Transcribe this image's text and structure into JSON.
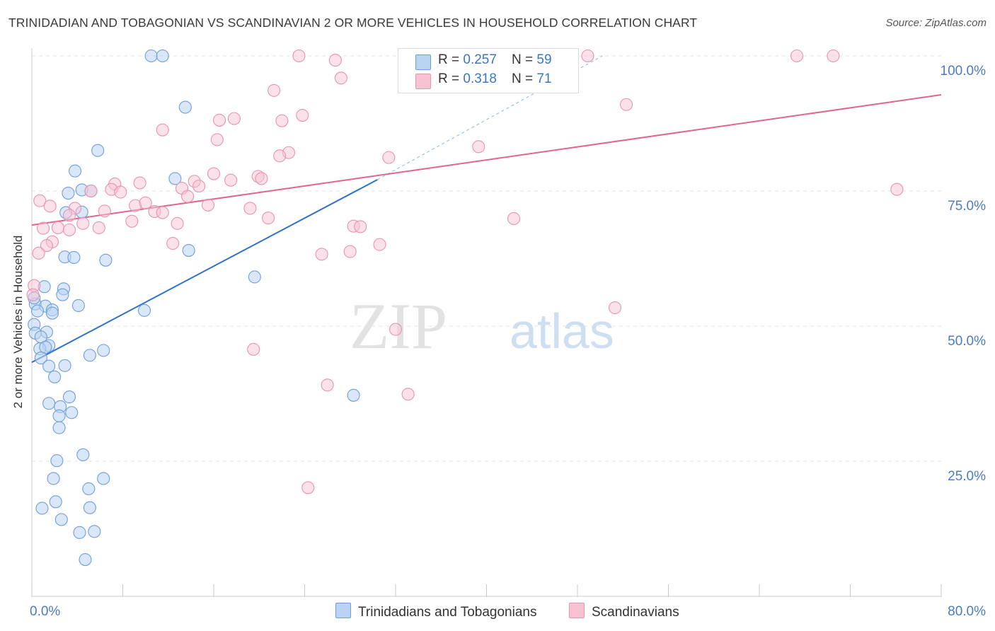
{
  "title": "TRINIDADIAN AND TOBAGONIAN VS SCANDINAVIAN 2 OR MORE VEHICLES IN HOUSEHOLD CORRELATION CHART",
  "source": "Source: ZipAtlas.com",
  "watermark": {
    "zip": "ZIP",
    "atlas": "atlas"
  },
  "legend_top": {
    "rows": [
      {
        "r_label": "R = ",
        "r_value": "0.257",
        "n_label": "N = ",
        "n_value": "59"
      },
      {
        "r_label": "R = ",
        "r_value": "0.318",
        "n_label": "N = ",
        "n_value": "71"
      }
    ]
  },
  "colors": {
    "blue_fill": "#b9d3f3",
    "blue_stroke": "#6f9fd8",
    "blue_line": "#2f72c9",
    "pink_fill": "#f7c3d3",
    "pink_stroke": "#e894ae",
    "pink_line": "#e0668f",
    "tick_label": "#4a7bc4"
  },
  "chart_data": {
    "type": "scatter",
    "title": "TRINIDADIAN AND TOBAGONIAN VS SCANDINAVIAN 2 OR MORE VEHICLES IN HOUSEHOLD CORRELATION CHART",
    "xlabel": "",
    "ylabel": "2 or more Vehicles in Household",
    "xlim": [
      0,
      80
    ],
    "ylim": [
      0,
      103
    ],
    "x_tick_labels": [
      "0.0%",
      "80.0%"
    ],
    "y_ticks": [
      25,
      50,
      75,
      100
    ],
    "y_tick_labels": [
      "25.0%",
      "50.0%",
      "75.0%",
      "100.0%"
    ],
    "grid": "horizontal dashed",
    "legend_position": "top-center and bottom",
    "series": [
      {
        "name": "Trinidadians and Tobagonians",
        "color": "#6f9fd8",
        "r": 0.257,
        "n": 59,
        "trend": {
          "x": [
            0,
            30.4
          ],
          "y": [
            43.3,
            77.1
          ]
        },
        "trend_extension": {
          "x": [
            30.4,
            50.2
          ],
          "y": [
            77.1,
            100.0
          ]
        },
        "points": [
          [
            10.5,
            100
          ],
          [
            11.5,
            100
          ],
          [
            13.5,
            90.5
          ],
          [
            5.8,
            82.5
          ],
          [
            3.8,
            78.7
          ],
          [
            12.6,
            77.3
          ],
          [
            3.2,
            74.6
          ],
          [
            4.4,
            75.2
          ],
          [
            5.2,
            75.0
          ],
          [
            4.4,
            71.1
          ],
          [
            3.0,
            71.0
          ],
          [
            13.8,
            64.0
          ],
          [
            2.9,
            62.8
          ],
          [
            3.7,
            62.7
          ],
          [
            6.5,
            62.2
          ],
          [
            19.6,
            59.1
          ],
          [
            1.1,
            57.3
          ],
          [
            2.8,
            56.9
          ],
          [
            2.7,
            55.8
          ],
          [
            0.3,
            54.1
          ],
          [
            1.2,
            53.7
          ],
          [
            1.8,
            53.0
          ],
          [
            0.5,
            52.8
          ],
          [
            4.1,
            53.8
          ],
          [
            1.8,
            52.4
          ],
          [
            9.9,
            52.9
          ],
          [
            0.2,
            50.3
          ],
          [
            1.3,
            48.9
          ],
          [
            0.3,
            48.7
          ],
          [
            0.8,
            48.0
          ],
          [
            1.5,
            46.4
          ],
          [
            0.7,
            45.8
          ],
          [
            1.2,
            46.1
          ],
          [
            6.3,
            45.5
          ],
          [
            5.1,
            44.6
          ],
          [
            0.8,
            44.1
          ],
          [
            2.9,
            42.7
          ],
          [
            1.5,
            42.6
          ],
          [
            2.0,
            40.6
          ],
          [
            3.3,
            36.9
          ],
          [
            1.5,
            35.7
          ],
          [
            2.5,
            35.1
          ],
          [
            28.3,
            37.2
          ],
          [
            3.5,
            34.0
          ],
          [
            2.4,
            33.4
          ],
          [
            2.4,
            31.2
          ],
          [
            4.5,
            26.2
          ],
          [
            2.2,
            25.1
          ],
          [
            6.3,
            21.8
          ],
          [
            1.9,
            21.8
          ],
          [
            5.0,
            19.9
          ],
          [
            2.1,
            17.5
          ],
          [
            0.9,
            16.3
          ],
          [
            5.1,
            16.4
          ],
          [
            2.6,
            14.2
          ],
          [
            4.2,
            11.8
          ],
          [
            5.5,
            12.0
          ],
          [
            4.7,
            6.8
          ],
          [
            0.2,
            55.2
          ]
        ]
      },
      {
        "name": "Scandinavians",
        "color": "#e894ae",
        "r": 0.318,
        "n": 71,
        "trend": {
          "x": [
            0,
            80
          ],
          "y": [
            68.7,
            92.8
          ]
        },
        "points": [
          [
            23.5,
            100
          ],
          [
            37.5,
            100
          ],
          [
            44.0,
            100
          ],
          [
            48.9,
            100
          ],
          [
            67.3,
            100
          ],
          [
            70.5,
            100
          ],
          [
            26.7,
            99.2
          ],
          [
            27.2,
            95.9
          ],
          [
            21.3,
            93.6
          ],
          [
            52.3,
            91.0
          ],
          [
            17.8,
            88.4
          ],
          [
            23.8,
            89.0
          ],
          [
            16.5,
            88.1
          ],
          [
            22.0,
            88.0
          ],
          [
            11.5,
            86.3
          ],
          [
            16.3,
            84.5
          ],
          [
            22.6,
            82.1
          ],
          [
            21.8,
            81.5
          ],
          [
            39.3,
            83.2
          ],
          [
            31.4,
            81.2
          ],
          [
            16.0,
            78.2
          ],
          [
            19.9,
            77.7
          ],
          [
            20.2,
            77.3
          ],
          [
            17.5,
            77.0
          ],
          [
            9.5,
            76.5
          ],
          [
            7.3,
            76.3
          ],
          [
            14.3,
            76.8
          ],
          [
            13.2,
            75.5
          ],
          [
            14.7,
            75.9
          ],
          [
            7.0,
            75.3
          ],
          [
            7.8,
            74.8
          ],
          [
            5.2,
            75.0
          ],
          [
            13.7,
            74.0
          ],
          [
            0.7,
            73.2
          ],
          [
            9.1,
            72.3
          ],
          [
            10.0,
            72.8
          ],
          [
            15.5,
            72.4
          ],
          [
            6.4,
            71.3
          ],
          [
            10.8,
            71.2
          ],
          [
            11.5,
            71.0
          ],
          [
            3.8,
            71.8
          ],
          [
            1.6,
            72.2
          ],
          [
            19.2,
            71.8
          ],
          [
            3.3,
            70.5
          ],
          [
            8.8,
            69.4
          ],
          [
            12.8,
            69.0
          ],
          [
            20.8,
            70.0
          ],
          [
            4.5,
            69.0
          ],
          [
            42.4,
            69.9
          ],
          [
            28.3,
            68.5
          ],
          [
            28.9,
            68.4
          ],
          [
            2.3,
            68.2
          ],
          [
            5.9,
            68.2
          ],
          [
            3.3,
            67.8
          ],
          [
            1.8,
            65.6
          ],
          [
            12.4,
            65.3
          ],
          [
            30.6,
            65.1
          ],
          [
            1.3,
            64.9
          ],
          [
            28.0,
            63.8
          ],
          [
            25.5,
            63.3
          ],
          [
            0.6,
            63.5
          ],
          [
            76.1,
            75.3
          ],
          [
            0.2,
            57.5
          ],
          [
            51.3,
            53.4
          ],
          [
            32.0,
            49.4
          ],
          [
            19.5,
            45.7
          ],
          [
            26.0,
            39.1
          ],
          [
            33.1,
            37.4
          ],
          [
            24.3,
            20.1
          ],
          [
            0.1,
            55.8
          ],
          [
            1.0,
            68.1
          ]
        ]
      }
    ]
  },
  "bottom_legend": [
    {
      "label": "Trinidadians and Tobagonians"
    },
    {
      "label": "Scandinavians"
    }
  ]
}
